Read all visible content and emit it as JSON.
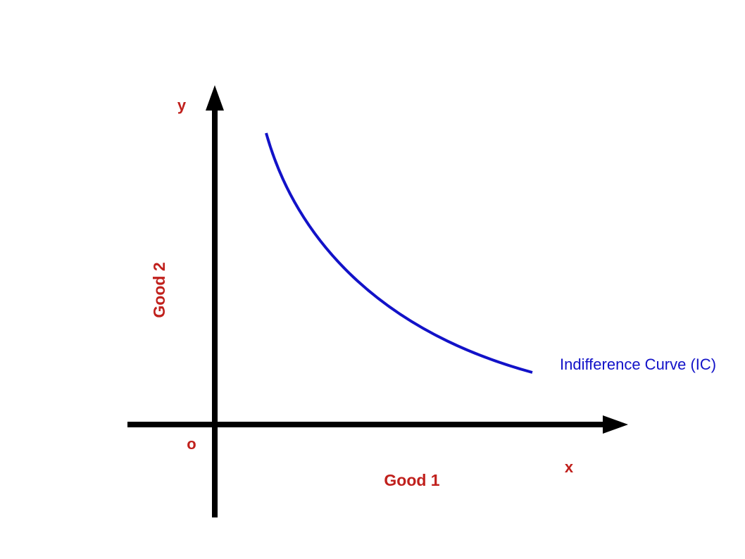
{
  "diagram": {
    "y_axis_letter": "y",
    "x_axis_letter": "x",
    "origin_label": "o",
    "y_axis_title": "Good 2",
    "x_axis_title": "Good 1",
    "curve_label": "Indifference Curve (IC)"
  },
  "colors": {
    "axis": "#000000",
    "label_text": "#c0201c",
    "curve": "#1212c8",
    "background": "#ffffff"
  }
}
